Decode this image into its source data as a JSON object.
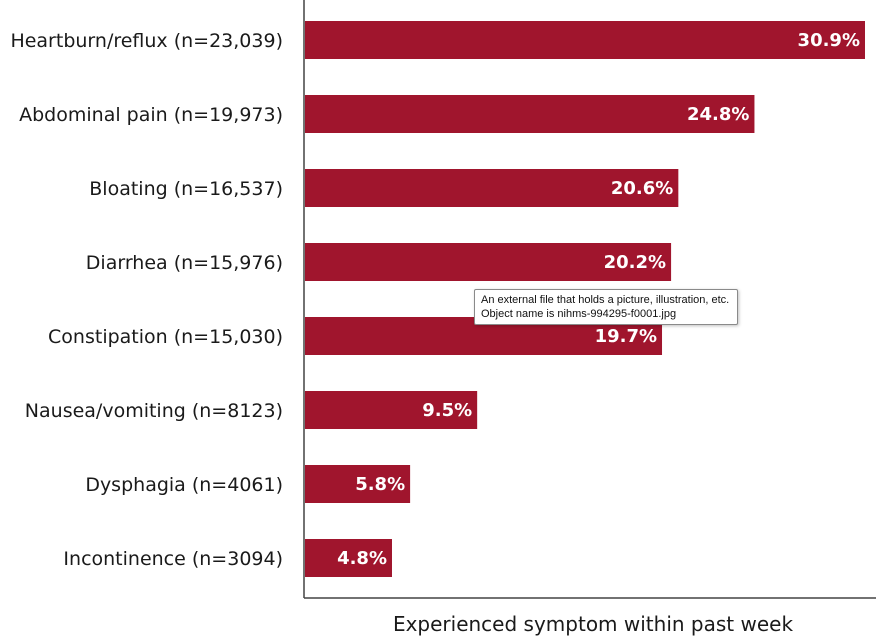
{
  "chart_data": {
    "type": "bar",
    "orientation": "horizontal",
    "categories": [
      "Heartburn/reflux (n=23,039)",
      "Abdominal pain (n=19,973)",
      "Bloating (n=16,537)",
      "Diarrhea (n=15,976)",
      "Constipation (n=15,030)",
      "Nausea/vomiting (n=8123)",
      "Dysphagia (n=4061)",
      "Incontinence (n=3094)"
    ],
    "values": [
      30.9,
      24.8,
      20.6,
      20.2,
      19.7,
      9.5,
      5.8,
      4.8
    ],
    "value_labels": [
      "30.9%",
      "24.8%",
      "20.6%",
      "20.2%",
      "19.7%",
      "9.5%",
      "5.8%",
      "4.8%"
    ],
    "xlabel": "Experienced symptom within past week",
    "ylabel": "",
    "xlim": [
      0,
      30.9
    ],
    "bar_color": "#a0152d",
    "grid": false
  },
  "tooltip": {
    "line1": "An external file that holds a picture, illustration, etc.",
    "line2": "Object name is nihms-994295-f0001.jpg"
  }
}
